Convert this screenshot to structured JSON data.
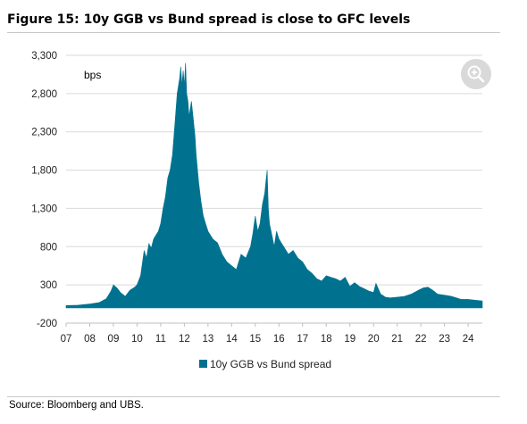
{
  "figure": {
    "title": "Figure 15: 10y GGB vs Bund spread is close to GFC levels",
    "source": "Source: Bloomberg and UBS."
  },
  "zoom": {
    "icon": "zoom-in-icon"
  },
  "chart_data": {
    "type": "area",
    "title": "Figure 15: 10y GGB vs Bund spread is close to GFC levels",
    "ylabel": "bps",
    "xlabel": "",
    "ylim": [
      -200,
      3300
    ],
    "yticks": [
      -200,
      300,
      800,
      1300,
      1800,
      2300,
      2800,
      3300
    ],
    "ytick_labels": [
      "-200",
      "300",
      "800",
      "1,300",
      "1,800",
      "2,300",
      "2,800",
      "3,300"
    ],
    "xticks": [
      2007,
      2008,
      2009,
      2010,
      2011,
      2012,
      2013,
      2014,
      2015,
      2016,
      2017,
      2018,
      2019,
      2020,
      2021,
      2022,
      2023,
      2024
    ],
    "xtick_labels": [
      "07",
      "08",
      "09",
      "10",
      "11",
      "12",
      "13",
      "14",
      "15",
      "16",
      "17",
      "18",
      "19",
      "20",
      "21",
      "22",
      "23",
      "24"
    ],
    "xlim": [
      2007.0,
      2024.6
    ],
    "grid": true,
    "legend_position": "bottom-center",
    "colors": {
      "series": "#00728f",
      "grid": "#d9d9d9"
    },
    "series": [
      {
        "name": "10y GGB vs Bund spread",
        "x": [
          2007.0,
          2007.5,
          2008.0,
          2008.4,
          2008.7,
          2008.9,
          2009.0,
          2009.15,
          2009.3,
          2009.5,
          2009.7,
          2009.9,
          2010.0,
          2010.15,
          2010.3,
          2010.4,
          2010.5,
          2010.6,
          2010.7,
          2010.8,
          2010.9,
          2011.0,
          2011.1,
          2011.2,
          2011.3,
          2011.4,
          2011.5,
          2011.6,
          2011.7,
          2011.8,
          2011.85,
          2011.9,
          2011.95,
          2012.0,
          2012.05,
          2012.1,
          2012.15,
          2012.2,
          2012.3,
          2012.4,
          2012.45,
          2012.5,
          2012.6,
          2012.7,
          2012.8,
          2012.9,
          2013.0,
          2013.2,
          2013.4,
          2013.6,
          2013.8,
          2014.0,
          2014.2,
          2014.4,
          2014.6,
          2014.8,
          2014.9,
          2015.0,
          2015.1,
          2015.2,
          2015.3,
          2015.4,
          2015.45,
          2015.5,
          2015.55,
          2015.6,
          2015.7,
          2015.8,
          2015.9,
          2016.0,
          2016.1,
          2016.2,
          2016.4,
          2016.6,
          2016.8,
          2017.0,
          2017.2,
          2017.4,
          2017.6,
          2017.8,
          2018.0,
          2018.2,
          2018.4,
          2018.6,
          2018.8,
          2019.0,
          2019.2,
          2019.4,
          2019.6,
          2019.8,
          2020.0,
          2020.1,
          2020.2,
          2020.3,
          2020.5,
          2020.7,
          2021.0,
          2021.3,
          2021.6,
          2021.9,
          2022.1,
          2022.3,
          2022.5,
          2022.7,
          2022.9,
          2023.1,
          2023.3,
          2023.5,
          2023.7,
          2024.0,
          2024.3,
          2024.6
        ],
        "values": [
          30,
          35,
          50,
          70,
          120,
          220,
          300,
          260,
          200,
          150,
          230,
          270,
          300,
          420,
          750,
          650,
          840,
          780,
          900,
          950,
          1000,
          1100,
          1300,
          1450,
          1700,
          1800,
          2000,
          2400,
          2800,
          3000,
          3150,
          2900,
          3100,
          2900,
          3200,
          2800,
          2700,
          2500,
          2700,
          2400,
          2250,
          2000,
          1650,
          1400,
          1200,
          1100,
          1000,
          900,
          850,
          700,
          600,
          550,
          500,
          700,
          650,
          800,
          980,
          1200,
          1000,
          1100,
          1350,
          1500,
          1650,
          1800,
          1300,
          1100,
          950,
          800,
          1000,
          900,
          850,
          800,
          700,
          750,
          650,
          600,
          500,
          450,
          380,
          350,
          420,
          400,
          380,
          350,
          400,
          280,
          330,
          280,
          250,
          220,
          200,
          320,
          250,
          180,
          140,
          130,
          140,
          150,
          180,
          230,
          260,
          270,
          230,
          180,
          170,
          160,
          150,
          130,
          110,
          110,
          100,
          90
        ]
      }
    ]
  }
}
